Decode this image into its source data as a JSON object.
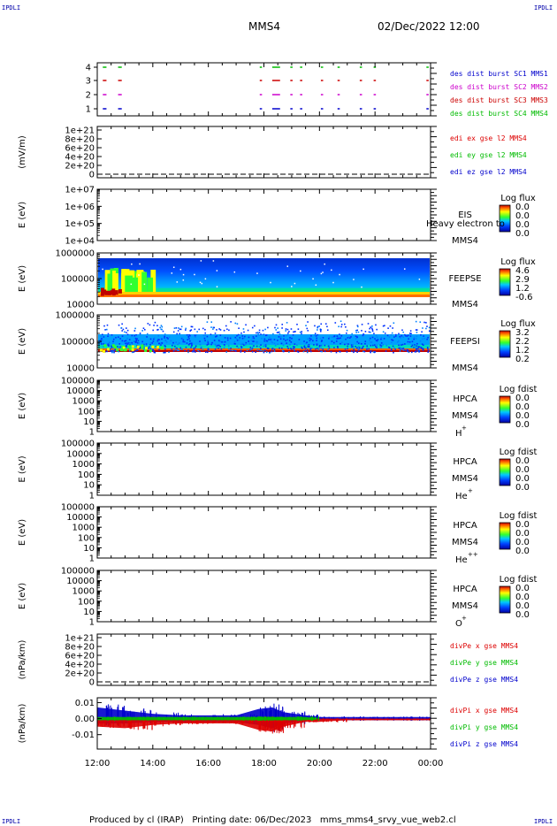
{
  "header": {
    "corner_left_top": "IPDLI",
    "corner_right_top": "IPDLI",
    "corner_left_bottom": "IPDLI",
    "corner_right_bottom": "IPDLI",
    "spacecraft": "MMS4",
    "date": "02/Dec/2022 12:00"
  },
  "footer": {
    "text": "Produced by cl (IRAP)   Printing date: 06/Dec/2023   mms_mms4_srvy_vue_web2.cl"
  },
  "colors": {
    "sc1": "#0000cc",
    "sc2": "#cc00cc",
    "sc3": "#cc0000",
    "sc4": "#00bb00",
    "x": "#dd0000",
    "y": "#00bb00",
    "z": "#0000cc"
  },
  "chart_data": [
    {
      "type": "scatter",
      "id": "des-burst",
      "yticks": [
        "4",
        "3",
        "2",
        "1"
      ],
      "legend": [
        {
          "label": "des dist burst SC1 MMS1",
          "color": "#0000cc"
        },
        {
          "label": "des dist burst SC2 MMS2",
          "color": "#cc00cc"
        },
        {
          "label": "des dist burst SC3 MMS3",
          "color": "#cc0000"
        },
        {
          "label": "des dist burst SC4 MMS4",
          "color": "#00bb00"
        }
      ],
      "series": [
        {
          "level": 4,
          "color": "#00bb00",
          "intervals": [
            [
              12.2,
              12.3
            ],
            [
              12.75,
              12.85
            ],
            [
              17.85,
              17.9
            ],
            [
              18.3,
              18.55
            ],
            [
              18.95,
              19.0
            ],
            [
              19.3,
              19.35
            ],
            [
              20.05,
              20.1
            ],
            [
              20.65,
              20.7
            ],
            [
              21.45,
              21.5
            ],
            [
              21.95,
              22.0
            ],
            [
              23.85,
              23.9
            ]
          ]
        },
        {
          "level": 3,
          "color": "#cc0000",
          "intervals": [
            [
              12.2,
              12.3
            ],
            [
              12.75,
              12.85
            ],
            [
              17.85,
              17.9
            ],
            [
              18.3,
              18.55
            ],
            [
              18.95,
              19.0
            ],
            [
              19.3,
              19.35
            ],
            [
              20.05,
              20.1
            ],
            [
              20.65,
              20.7
            ],
            [
              21.45,
              21.5
            ],
            [
              21.95,
              22.0
            ],
            [
              23.85,
              23.9
            ]
          ]
        },
        {
          "level": 2,
          "color": "#cc00cc",
          "intervals": [
            [
              12.2,
              12.3
            ],
            [
              12.75,
              12.85
            ],
            [
              17.85,
              17.9
            ],
            [
              18.3,
              18.55
            ],
            [
              18.95,
              19.0
            ],
            [
              19.3,
              19.35
            ],
            [
              20.05,
              20.1
            ],
            [
              20.65,
              20.7
            ],
            [
              21.45,
              21.5
            ],
            [
              21.95,
              22.0
            ],
            [
              23.85,
              23.9
            ]
          ]
        },
        {
          "level": 1,
          "color": "#0000cc",
          "intervals": [
            [
              12.2,
              12.3
            ],
            [
              12.75,
              12.85
            ],
            [
              17.85,
              17.9
            ],
            [
              18.3,
              18.55
            ],
            [
              18.95,
              19.0
            ],
            [
              19.3,
              19.35
            ],
            [
              20.05,
              20.1
            ],
            [
              20.65,
              20.7
            ],
            [
              21.45,
              21.5
            ],
            [
              21.95,
              22.0
            ],
            [
              23.85,
              23.9
            ]
          ]
        }
      ]
    },
    {
      "type": "line",
      "id": "edi-e",
      "ylabel": "(mV/m)",
      "yticks": [
        "1e+21",
        "8e+20",
        "6e+20",
        "4e+20",
        "2e+20",
        "0"
      ],
      "legend": [
        {
          "label": "edi ex gse l2 MMS4",
          "color": "#dd0000"
        },
        {
          "label": "edi ey gse l2 MMS4",
          "color": "#00bb00"
        },
        {
          "label": "edi ez gse l2 MMS4",
          "color": "#0000cc"
        }
      ],
      "zero_line": true
    },
    {
      "type": "heatmap",
      "id": "eis",
      "ylabel": "E (eV)",
      "yticks": [
        "1e+07",
        "1e+06",
        "1e+05",
        "1e+04"
      ],
      "instrument": "EIS",
      "spacecraft": "MMS4",
      "overlay_text": "Heavy electron to",
      "cbar_title": "Log flux",
      "cbar_ticks": [
        "0.0",
        "0.0",
        "0.0",
        "0.0"
      ],
      "empty": true
    },
    {
      "type": "heatmap",
      "id": "feepse",
      "ylabel": "E (eV)",
      "yticks": [
        "1000000",
        "100000",
        "10000"
      ],
      "instrument": "FEEPSE",
      "spacecraft": "MMS4",
      "cbar_title": "Log flux",
      "cbar_ticks": [
        "4.6",
        "2.9",
        "1.2",
        "-0.6"
      ],
      "empty": false
    },
    {
      "type": "heatmap",
      "id": "feepsi",
      "ylabel": "E (eV)",
      "yticks": [
        "1000000",
        "100000",
        "10000"
      ],
      "instrument": "FEEPSI",
      "spacecraft": "MMS4",
      "cbar_title": "Log flux",
      "cbar_ticks": [
        "3.2",
        "2.2",
        "1.2",
        "0.2"
      ],
      "empty": false
    },
    {
      "type": "heatmap",
      "id": "hpca-h",
      "ylabel": "E (eV)",
      "yticks": [
        "100000",
        "10000",
        "1000",
        "100",
        "10",
        "1"
      ],
      "instrument": "HPCA",
      "spacecraft": "MMS4",
      "species": "H",
      "species_sup": "+",
      "cbar_title": "Log fdist",
      "cbar_ticks": [
        "0.0",
        "0.0",
        "0.0",
        "0.0"
      ],
      "empty": true
    },
    {
      "type": "heatmap",
      "id": "hpca-he",
      "ylabel": "E (eV)",
      "yticks": [
        "100000",
        "10000",
        "1000",
        "100",
        "10",
        "1"
      ],
      "instrument": "HPCA",
      "spacecraft": "MMS4",
      "species": "He",
      "species_sup": "+",
      "cbar_title": "Log fdist",
      "cbar_ticks": [
        "0.0",
        "0.0",
        "0.0",
        "0.0"
      ],
      "empty": true
    },
    {
      "type": "heatmap",
      "id": "hpca-hepp",
      "ylabel": "E (eV)",
      "yticks": [
        "100000",
        "10000",
        "1000",
        "100",
        "10",
        "1"
      ],
      "instrument": "HPCA",
      "spacecraft": "MMS4",
      "species": "He",
      "species_sup": "++",
      "cbar_title": "Log fdist",
      "cbar_ticks": [
        "0.0",
        "0.0",
        "0.0",
        "0.0"
      ],
      "empty": true
    },
    {
      "type": "heatmap",
      "id": "hpca-o",
      "ylabel": "E (eV)",
      "yticks": [
        "100000",
        "10000",
        "1000",
        "100",
        "10",
        "1"
      ],
      "instrument": "HPCA",
      "spacecraft": "MMS4",
      "species": "O",
      "species_sup": "+",
      "cbar_title": "Log fdist",
      "cbar_ticks": [
        "0.0",
        "0.0",
        "0.0",
        "0.0"
      ],
      "empty": true
    },
    {
      "type": "line",
      "id": "divpe",
      "ylabel": "(nPa/km)",
      "yticks": [
        "1e+21",
        "8e+20",
        "6e+20",
        "4e+20",
        "2e+20",
        "0"
      ],
      "legend": [
        {
          "label": "divPe x gse MMS4",
          "color": "#dd0000"
        },
        {
          "label": "divPe y gse MMS4",
          "color": "#00bb00"
        },
        {
          "label": "divPe z gse MMS4",
          "color": "#0000cc"
        }
      ],
      "zero_line": true
    },
    {
      "type": "line",
      "id": "divpi",
      "ylabel": "(nPa/km)",
      "yticks": [
        "0.01",
        "0.00",
        "-0.01"
      ],
      "ylim": [
        -0.019,
        0.013
      ],
      "legend": [
        {
          "label": "divPi x gse MMS4",
          "color": "#dd0000"
        },
        {
          "label": "divPi y gse MMS4",
          "color": "#00bb00"
        },
        {
          "label": "divPi z gse MMS4",
          "color": "#0000cc"
        }
      ],
      "bands": [
        {
          "series": "z",
          "color": "#0000cc",
          "x": [
            12.0,
            13.0,
            14.0,
            15.0,
            16.0,
            17.0,
            17.8,
            18.3,
            18.7,
            19.5,
            20.0,
            21.0,
            22.0,
            23.0,
            24.0
          ],
          "lo": [
            -0.003,
            -0.003,
            -0.002,
            -0.002,
            -0.002,
            -0.002,
            -0.004,
            -0.006,
            -0.003,
            -0.001,
            -0.001,
            -0.001,
            -0.001,
            -0.001,
            -0.001
          ],
          "hi": [
            0.007,
            0.005,
            0.003,
            0.002,
            0.002,
            0.002,
            0.006,
            0.007,
            0.004,
            0.002,
            0.001,
            0.001,
            0.001,
            0.001,
            0.001
          ]
        },
        {
          "series": "x",
          "color": "#dd0000",
          "x": [
            12.0,
            13.0,
            14.0,
            15.0,
            16.0,
            17.0,
            17.8,
            18.3,
            18.7,
            19.5,
            20.0,
            21.0,
            22.0,
            23.0,
            24.0
          ],
          "lo": [
            -0.005,
            -0.006,
            -0.004,
            -0.003,
            -0.003,
            -0.003,
            -0.007,
            -0.008,
            -0.005,
            -0.002,
            -0.002,
            -0.001,
            -0.001,
            -0.001,
            -0.001
          ],
          "hi": [
            0.0,
            0.0,
            0.0,
            0.0,
            0.0,
            0.0,
            0.0,
            0.0,
            0.0,
            0.0,
            0.0,
            0.0,
            0.0,
            0.0,
            0.0
          ]
        },
        {
          "series": "y",
          "color": "#00bb00",
          "x": [
            12.0,
            13.0,
            14.0,
            15.0,
            16.0,
            17.0,
            17.8,
            18.3,
            18.7,
            19.5,
            20.0,
            21.0,
            22.0,
            23.0,
            24.0
          ],
          "lo": [
            -0.001,
            -0.001,
            -0.001,
            -0.001,
            -0.001,
            -0.001,
            -0.001,
            -0.001,
            -0.001,
            -0.001,
            0.0,
            0.0,
            0.0,
            0.0,
            0.0
          ],
          "hi": [
            0.001,
            0.001,
            0.001,
            0.001,
            0.001,
            0.001,
            0.001,
            0.001,
            0.001,
            0.001,
            0.0,
            0.0,
            0.0,
            0.0,
            0.0
          ]
        }
      ]
    }
  ],
  "xaxis": {
    "ticks": [
      {
        "value": 12,
        "label": "12:00"
      },
      {
        "value": 14,
        "label": "14:00"
      },
      {
        "value": 16,
        "label": "16:00"
      },
      {
        "value": 18,
        "label": "18:00"
      },
      {
        "value": 20,
        "label": "20:00"
      },
      {
        "value": 22,
        "label": "22:00"
      },
      {
        "value": 24,
        "label": "00:00"
      }
    ],
    "range": [
      12,
      24
    ]
  }
}
